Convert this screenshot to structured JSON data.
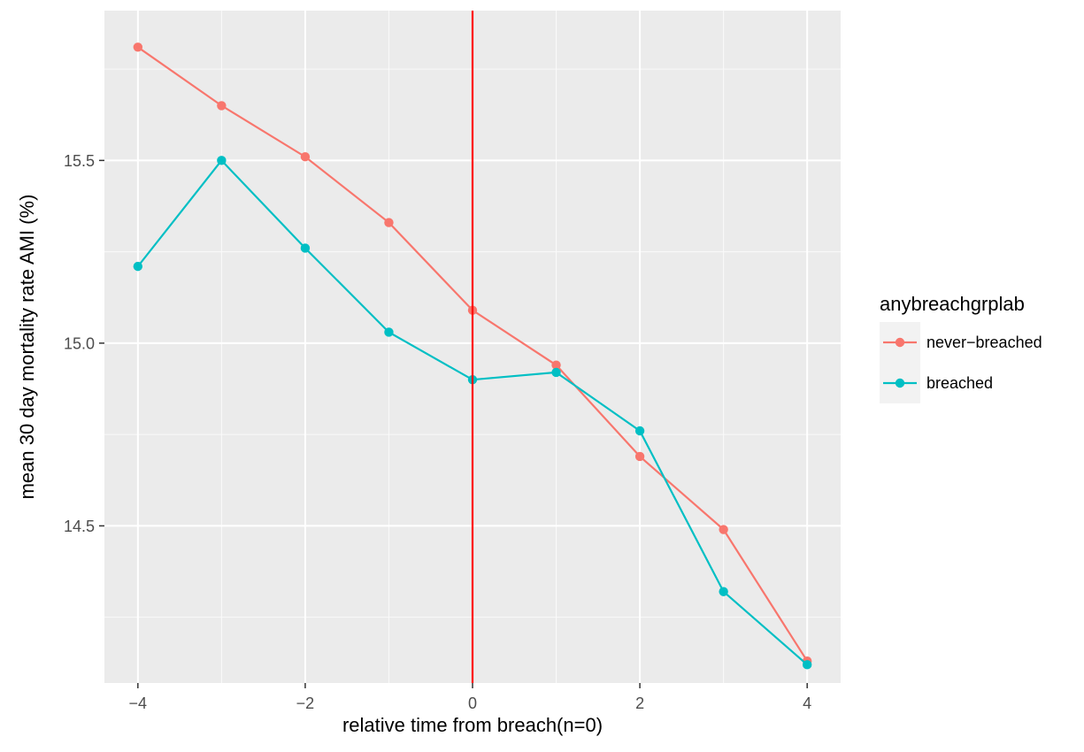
{
  "chart_data": {
    "type": "line",
    "xlabel": "relative time from breach(n=0)",
    "ylabel": "mean 30 day mortality rate AMI (%)",
    "x": [
      -4,
      -3,
      -2,
      -1,
      0,
      1,
      2,
      3,
      4
    ],
    "xlim": [
      -4.4,
      4.4
    ],
    "ylim": [
      14.07,
      15.91
    ],
    "x_ticks": [
      -4,
      -2,
      0,
      2,
      4
    ],
    "x_tick_labels": [
      "−4",
      "−2",
      "0",
      "2",
      "4"
    ],
    "y_ticks": [
      14.5,
      15.0,
      15.5
    ],
    "y_tick_labels": [
      "14.5",
      "15.0",
      "15.5"
    ],
    "vline": {
      "x": 0,
      "color": "#ff0000"
    },
    "grid": true,
    "panel_background": "#ebebeb",
    "legend": {
      "title": "anybreachgrplab",
      "position": "right"
    },
    "series": [
      {
        "name": "never−breached",
        "color": "#f8766d",
        "values": [
          15.81,
          15.65,
          15.51,
          15.33,
          15.09,
          14.94,
          14.69,
          14.49,
          14.13
        ]
      },
      {
        "name": "breached",
        "color": "#00bfc4",
        "values": [
          15.21,
          15.5,
          15.26,
          15.03,
          14.9,
          14.92,
          14.76,
          14.32,
          14.12
        ]
      }
    ]
  }
}
